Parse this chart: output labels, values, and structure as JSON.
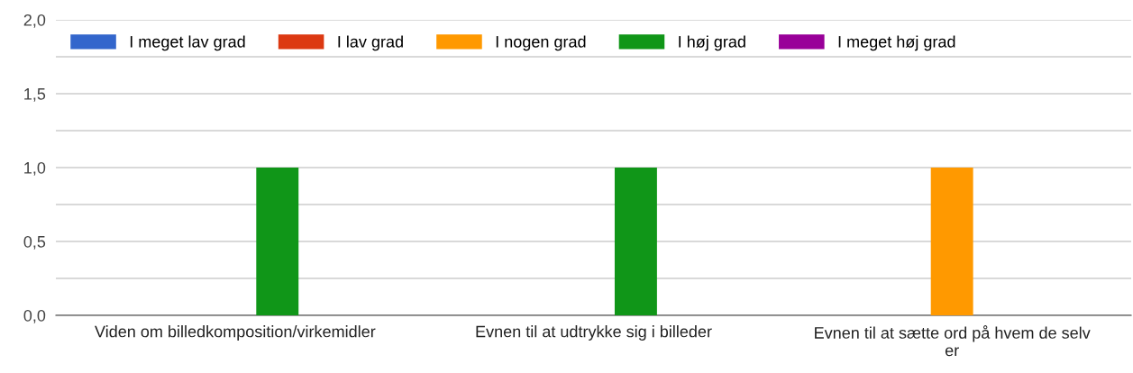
{
  "chart_data": {
    "type": "bar",
    "categories": [
      "Viden om billedkomposition/virkemidler",
      "Evnen til at udtrykke sig i billeder",
      "Evnen til at sætte ord på hvem de selv er"
    ],
    "series": [
      {
        "name": "I meget lav grad",
        "color": "#3366cc",
        "values": [
          0,
          0,
          0
        ]
      },
      {
        "name": "I lav grad",
        "color": "#dc3912",
        "values": [
          0,
          0,
          0
        ]
      },
      {
        "name": "I nogen grad",
        "color": "#ff9900",
        "values": [
          0,
          0,
          1
        ]
      },
      {
        "name": "I høj grad",
        "color": "#109618",
        "values": [
          1,
          1,
          0
        ]
      },
      {
        "name": "I meget høj grad",
        "color": "#990099",
        "values": [
          0,
          0,
          0
        ]
      }
    ],
    "ylim": [
      0,
      2
    ],
    "yticks": [
      {
        "value": 0,
        "label": "0,0"
      },
      {
        "value": 0.25,
        "label": null
      },
      {
        "value": 0.5,
        "label": "0,5"
      },
      {
        "value": 0.75,
        "label": null
      },
      {
        "value": 1,
        "label": "1,0"
      },
      {
        "value": 1.25,
        "label": null
      },
      {
        "value": 1.5,
        "label": "1,5"
      },
      {
        "value": 1.75,
        "label": null
      },
      {
        "value": 2,
        "label": "2,0"
      }
    ],
    "grid": "y",
    "legend": "top left"
  }
}
